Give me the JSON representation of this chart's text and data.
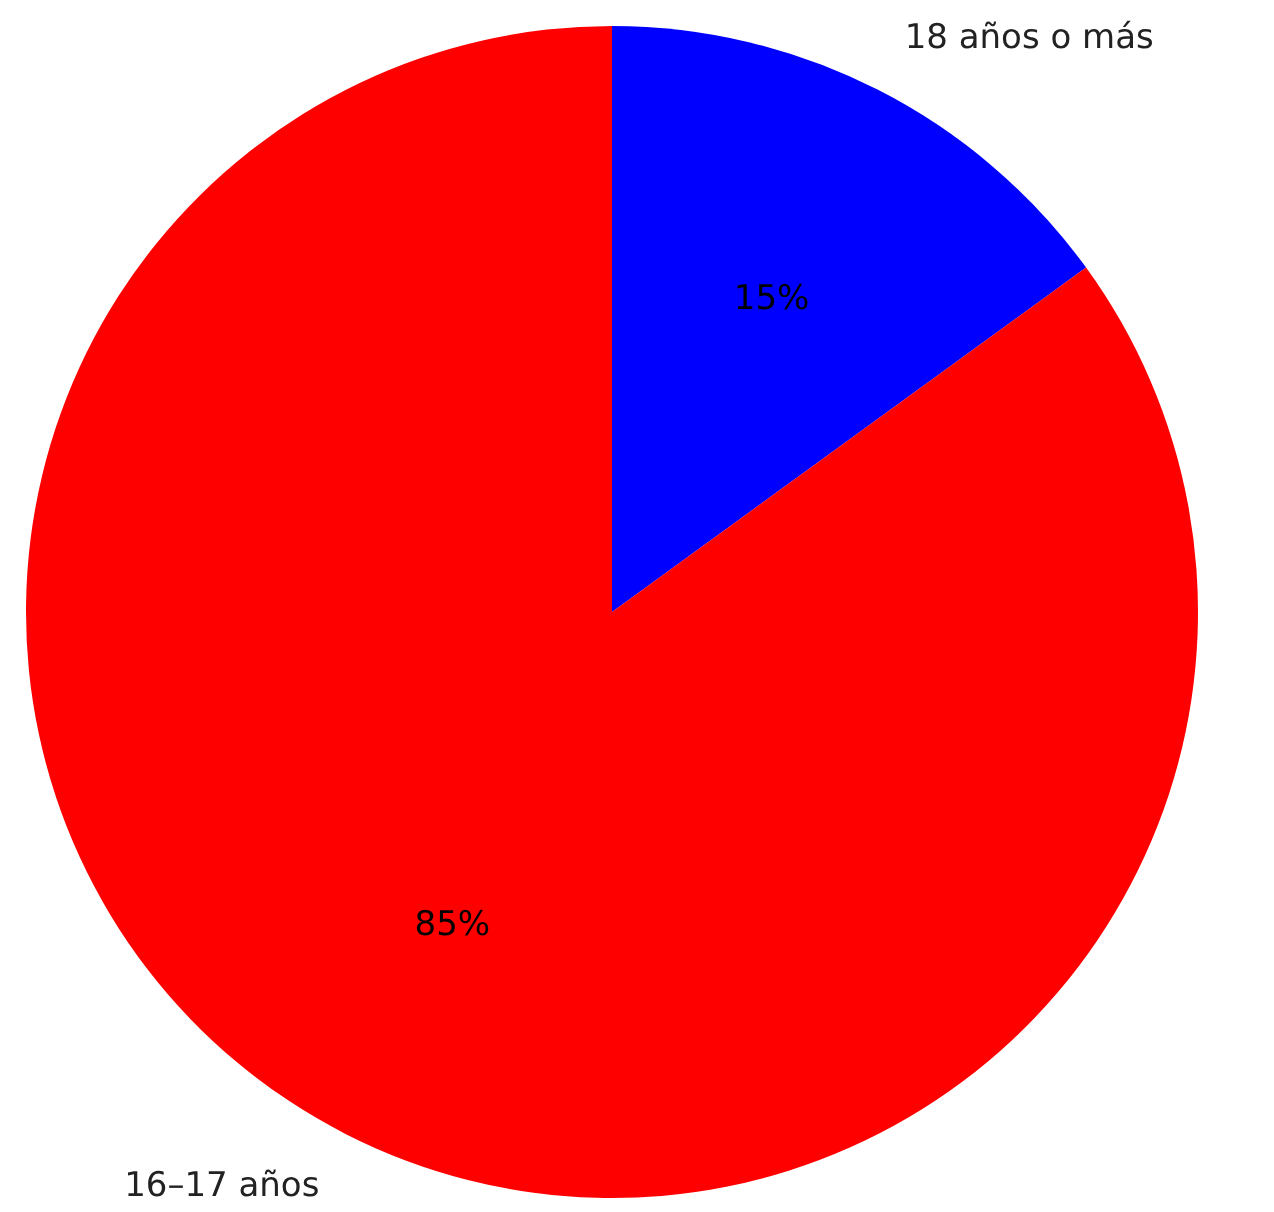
{
  "chart_data": {
    "type": "pie",
    "categories": [
      "18 años o más",
      "16–17 años"
    ],
    "values": [
      15,
      85
    ],
    "colors": [
      "#0000ff",
      "#ff0000"
    ],
    "value_labels": [
      "15%",
      "85%"
    ]
  }
}
